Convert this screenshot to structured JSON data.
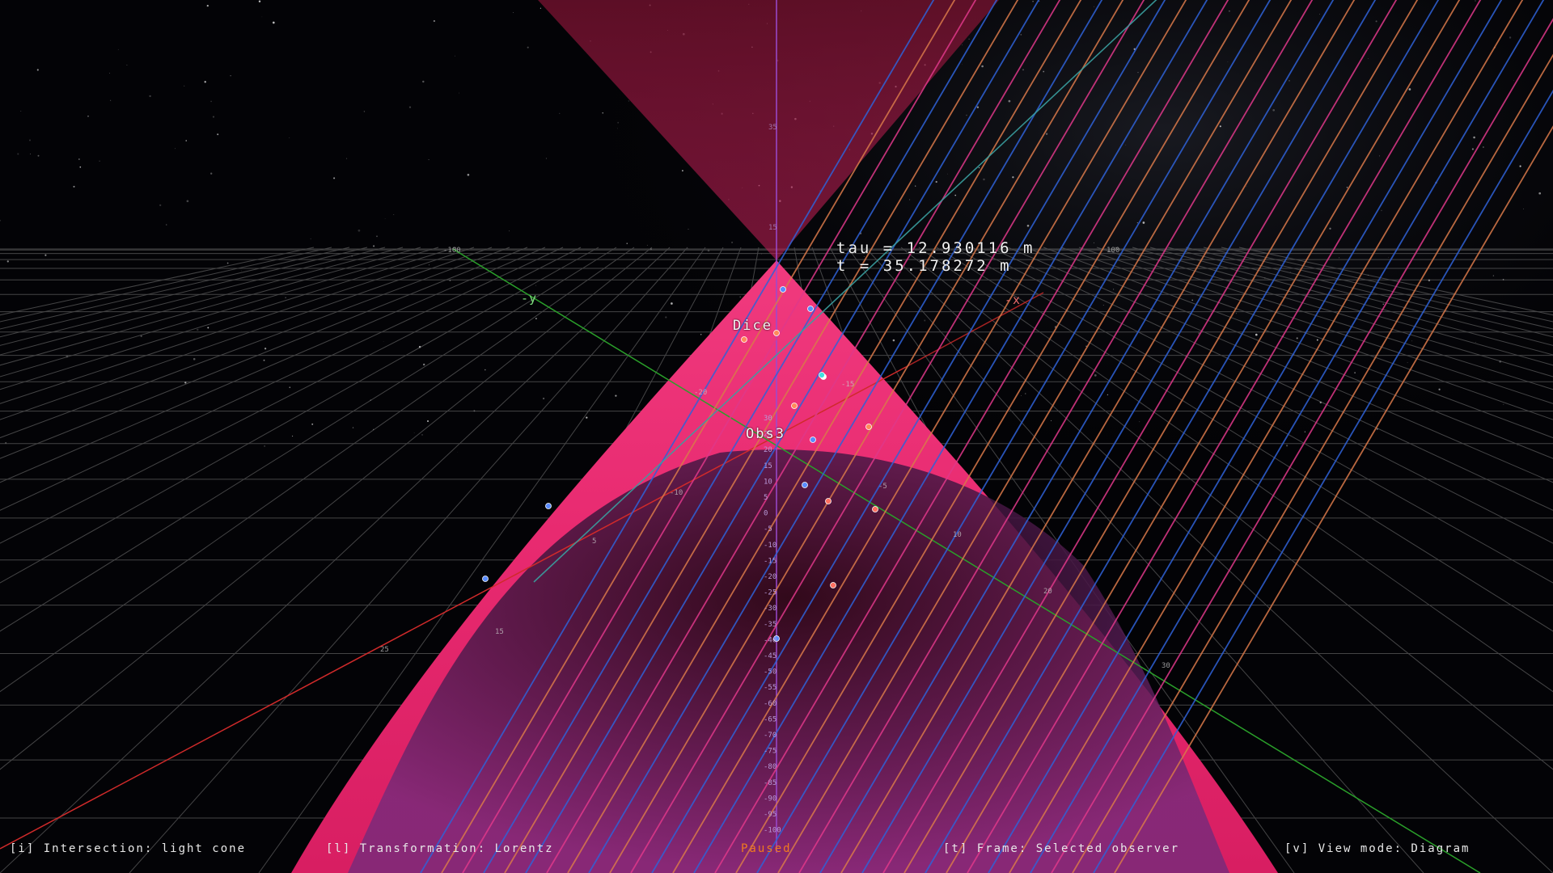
{
  "overlay": {
    "tau": "tau = 12.930116 m",
    "t": "t = 35.178272 m"
  },
  "labels": {
    "dice": "Dice",
    "observer": "Obs3",
    "axis_neg_y": "-y",
    "axis_neg_x": "-x"
  },
  "status_bar": {
    "intersection": "[i] Intersection: light cone",
    "transformation": "[l] Transformation: Lorentz",
    "state": "Paused",
    "frame": "[t] Frame: Selected observer",
    "view_mode": "[v] View mode: Diagram"
  },
  "colors": {
    "background": "#030306",
    "light_cone": "#e8286e",
    "worldline_blue": "#2f62d8",
    "worldline_orange": "#d9794a",
    "worldline_magenta": "#e0388a",
    "axis_x": "#d02a2a",
    "axis_y": "#2aa02a",
    "axis_t": "#9a4ad0",
    "grid": "#7a7a7a",
    "status_paused": "#f07a1e"
  },
  "time_axis_ticks": [
    "30",
    "25",
    "20",
    "15",
    "10",
    "5",
    "0",
    "-5",
    "-10",
    "-15",
    "-20",
    "-25",
    "-30",
    "-35",
    "-40",
    "-45",
    "-50",
    "-55",
    "-60",
    "-65",
    "-70",
    "-75",
    "-80",
    "-85",
    "-90",
    "-95",
    "-100"
  ],
  "upper_time_ticks": [
    "35",
    "15"
  ],
  "spatial_axis_ticks": [
    "-20",
    "-15",
    "-10",
    "-5",
    "5",
    "10",
    "15",
    "20",
    "25",
    "30"
  ],
  "grid_edge_ticks": [
    "-100",
    "100"
  ],
  "icons": {
    "starfield": "starfield-background",
    "event_marker": "worldline-event-dot"
  }
}
